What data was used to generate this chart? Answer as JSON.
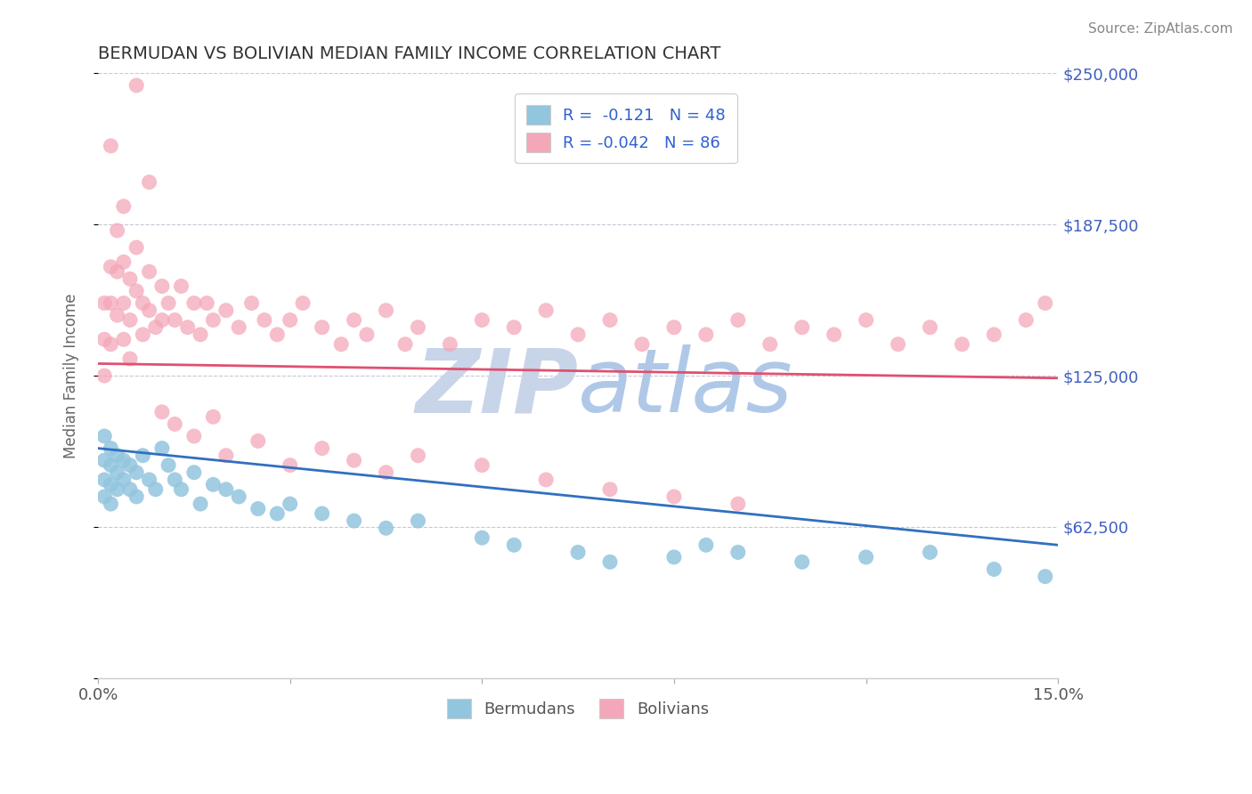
{
  "title": "BERMUDAN VS BOLIVIAN MEDIAN FAMILY INCOME CORRELATION CHART",
  "source": "Source: ZipAtlas.com",
  "ylabel": "Median Family Income",
  "xlim": [
    0.0,
    0.15
  ],
  "ylim": [
    0,
    250000
  ],
  "yticks": [
    0,
    62500,
    125000,
    187500,
    250000
  ],
  "ytick_labels": [
    "",
    "$62,500",
    "$125,000",
    "$187,500",
    "$250,000"
  ],
  "blue_color": "#92c5de",
  "pink_color": "#f4a7b9",
  "blue_line_color": "#3070c0",
  "pink_line_color": "#e05070",
  "grid_color": "#c8c8d8",
  "bg_color": "#ffffff",
  "watermark_color": "#c8d4e8",
  "label_color": "#4060c0",
  "legend_text_color": "#3060d0",
  "legend_r1": "R =  -0.121",
  "legend_n1": "N = 48",
  "legend_r2": "R = -0.042",
  "legend_n2": "N = 86",
  "legend_label1": "Bermudans",
  "legend_label2": "Bolivians",
  "blue_line_y0": 95000,
  "blue_line_y1": 55000,
  "pink_line_y0": 130000,
  "pink_line_y1": 124000,
  "blue_scatter_x": [
    0.001,
    0.001,
    0.001,
    0.001,
    0.002,
    0.002,
    0.002,
    0.002,
    0.003,
    0.003,
    0.003,
    0.004,
    0.004,
    0.005,
    0.005,
    0.006,
    0.006,
    0.007,
    0.008,
    0.009,
    0.01,
    0.011,
    0.012,
    0.013,
    0.015,
    0.016,
    0.018,
    0.02,
    0.022,
    0.025,
    0.028,
    0.03,
    0.035,
    0.04,
    0.045,
    0.05,
    0.06,
    0.065,
    0.075,
    0.08,
    0.09,
    0.095,
    0.1,
    0.11,
    0.12,
    0.13,
    0.14,
    0.148
  ],
  "blue_scatter_y": [
    100000,
    90000,
    82000,
    75000,
    95000,
    88000,
    80000,
    72000,
    92000,
    85000,
    78000,
    90000,
    82000,
    88000,
    78000,
    85000,
    75000,
    92000,
    82000,
    78000,
    95000,
    88000,
    82000,
    78000,
    85000,
    72000,
    80000,
    78000,
    75000,
    70000,
    68000,
    72000,
    68000,
    65000,
    62000,
    65000,
    58000,
    55000,
    52000,
    48000,
    50000,
    55000,
    52000,
    48000,
    50000,
    52000,
    45000,
    42000
  ],
  "pink_scatter_x": [
    0.001,
    0.001,
    0.001,
    0.002,
    0.002,
    0.002,
    0.003,
    0.003,
    0.003,
    0.004,
    0.004,
    0.004,
    0.005,
    0.005,
    0.005,
    0.006,
    0.006,
    0.007,
    0.007,
    0.008,
    0.008,
    0.009,
    0.01,
    0.01,
    0.011,
    0.012,
    0.013,
    0.014,
    0.015,
    0.016,
    0.017,
    0.018,
    0.02,
    0.022,
    0.024,
    0.026,
    0.028,
    0.03,
    0.032,
    0.035,
    0.038,
    0.04,
    0.042,
    0.045,
    0.048,
    0.05,
    0.055,
    0.06,
    0.065,
    0.07,
    0.075,
    0.08,
    0.085,
    0.09,
    0.095,
    0.1,
    0.105,
    0.11,
    0.115,
    0.12,
    0.125,
    0.13,
    0.135,
    0.14,
    0.145,
    0.148,
    0.002,
    0.004,
    0.006,
    0.008,
    0.01,
    0.012,
    0.015,
    0.018,
    0.02,
    0.025,
    0.03,
    0.035,
    0.04,
    0.045,
    0.05,
    0.06,
    0.07,
    0.08,
    0.09,
    0.1
  ],
  "pink_scatter_y": [
    155000,
    140000,
    125000,
    170000,
    155000,
    138000,
    185000,
    168000,
    150000,
    172000,
    155000,
    140000,
    165000,
    148000,
    132000,
    178000,
    160000,
    155000,
    142000,
    168000,
    152000,
    145000,
    162000,
    148000,
    155000,
    148000,
    162000,
    145000,
    155000,
    142000,
    155000,
    148000,
    152000,
    145000,
    155000,
    148000,
    142000,
    148000,
    155000,
    145000,
    138000,
    148000,
    142000,
    152000,
    138000,
    145000,
    138000,
    148000,
    145000,
    152000,
    142000,
    148000,
    138000,
    145000,
    142000,
    148000,
    138000,
    145000,
    142000,
    148000,
    138000,
    145000,
    138000,
    142000,
    148000,
    155000,
    220000,
    195000,
    245000,
    205000,
    110000,
    105000,
    100000,
    108000,
    92000,
    98000,
    88000,
    95000,
    90000,
    85000,
    92000,
    88000,
    82000,
    78000,
    75000,
    72000
  ]
}
